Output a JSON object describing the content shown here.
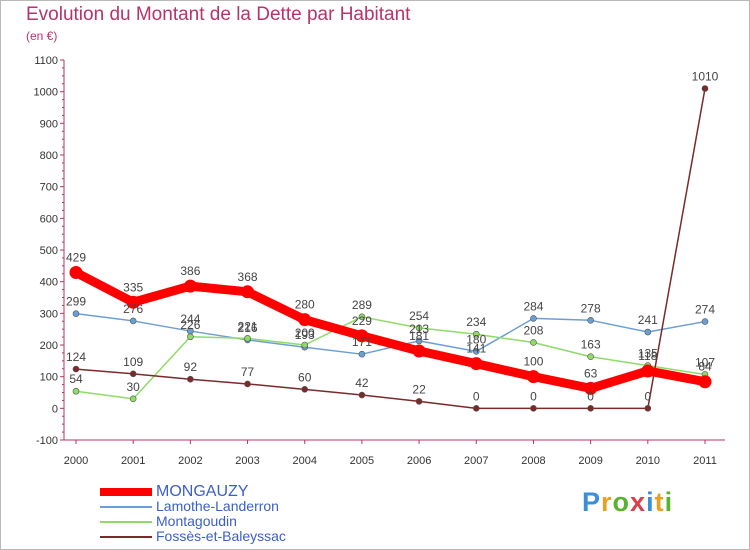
{
  "header": {
    "title": "Evolution du Montant de la Dette par Habitant",
    "subtitle": "(en €)"
  },
  "logo": {
    "text": "Proxiti",
    "letter_colors": [
      "#3a8fd6",
      "#e8a11f",
      "#5ab22f",
      "#d9414a",
      "#3a8fd6",
      "#e8a11f",
      "#5ab22f"
    ]
  },
  "chart_data": {
    "type": "line",
    "title": "Evolution du Montant de la Dette par Habitant",
    "subtitle": "(en €)",
    "xlabel": "",
    "ylabel": "",
    "categories": [
      "2000",
      "2001",
      "2002",
      "2003",
      "2004",
      "2005",
      "2006",
      "2007",
      "2008",
      "2009",
      "2010",
      "2011"
    ],
    "ylim": [
      -100,
      1100
    ],
    "yticks": [
      -100,
      0,
      100,
      200,
      300,
      400,
      500,
      600,
      700,
      800,
      900,
      1000,
      1100
    ],
    "grid": false,
    "legend_position": "bottom-left",
    "series": [
      {
        "name": "MONGAUZY",
        "color": "#ff0000",
        "emphasis": true,
        "values": [
          429,
          335,
          386,
          368,
          280,
          229,
          181,
          141,
          100,
          63,
          118,
          84
        ],
        "labels": [
          "429",
          "335",
          "386",
          "368",
          "280",
          "229",
          "181",
          "141",
          "100",
          "63",
          "118",
          "84"
        ]
      },
      {
        "name": "Lamothe-Landerron",
        "color": "#6b9fd4",
        "emphasis": false,
        "values": [
          299,
          276,
          244,
          216,
          193,
          171,
          213,
          180,
          284,
          278,
          241,
          274
        ],
        "labels": [
          "299",
          "276",
          "244",
          "216",
          "193",
          "171",
          "213",
          "180",
          "284",
          "278",
          "241",
          "274"
        ]
      },
      {
        "name": "Montagoudin",
        "color": "#8fdb67",
        "emphasis": false,
        "values": [
          54,
          30,
          226,
          221,
          200,
          289,
          254,
          234,
          208,
          163,
          135,
          107
        ],
        "labels": [
          "54",
          "30",
          "226",
          "221",
          "200",
          "289",
          "254",
          "234",
          "208",
          "163",
          "135",
          "107"
        ]
      },
      {
        "name": "Fossès-et-Baleyssac",
        "color": "#7a2a2a",
        "emphasis": false,
        "values": [
          124,
          109,
          92,
          77,
          60,
          42,
          22,
          0,
          0,
          0,
          0,
          1010
        ],
        "labels": [
          "124",
          "109",
          "92",
          "77",
          "60",
          "42",
          "22",
          "0",
          "0",
          "0",
          "0",
          "1010"
        ]
      }
    ]
  }
}
